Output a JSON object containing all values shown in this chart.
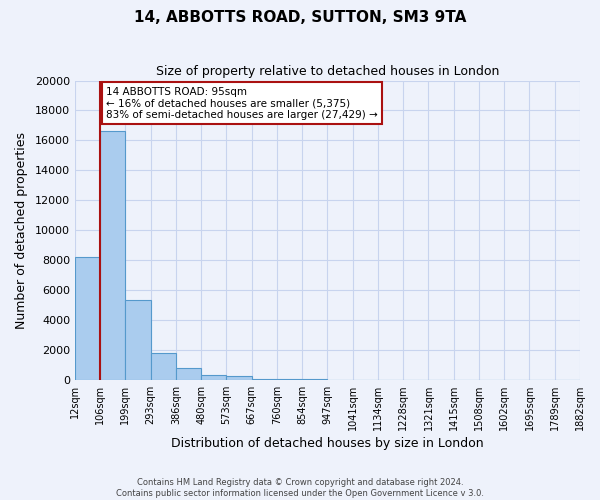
{
  "title": "14, ABBOTTS ROAD, SUTTON, SM3 9TA",
  "subtitle": "Size of property relative to detached houses in London",
  "xlabel": "Distribution of detached houses by size in London",
  "ylabel": "Number of detached properties",
  "bin_labels": [
    "12sqm",
    "106sqm",
    "199sqm",
    "293sqm",
    "386sqm",
    "480sqm",
    "573sqm",
    "667sqm",
    "760sqm",
    "854sqm",
    "947sqm",
    "1041sqm",
    "1134sqm",
    "1228sqm",
    "1321sqm",
    "1415sqm",
    "1508sqm",
    "1602sqm",
    "1695sqm",
    "1789sqm",
    "1882sqm"
  ],
  "bar_values": [
    8200,
    16600,
    5300,
    1800,
    800,
    300,
    270,
    50,
    50,
    20,
    10,
    5,
    5,
    2,
    2,
    1,
    1,
    1,
    1,
    1
  ],
  "bar_color": "#aaccee",
  "bar_edge_color": "#5599cc",
  "background_color": "#eef2fb",
  "grid_color": "#c8d4ee",
  "property_label": "14 ABBOTTS ROAD: 95sqm",
  "smaller_pct": 16,
  "smaller_count": 5375,
  "larger_pct": 83,
  "larger_count": 27429,
  "red_line_color": "#aa1111",
  "annotation_box_edge_color": "#aa1111",
  "ylim": [
    0,
    20000
  ],
  "yticks": [
    0,
    2000,
    4000,
    6000,
    8000,
    10000,
    12000,
    14000,
    16000,
    18000,
    20000
  ],
  "footer_line1": "Contains HM Land Registry data © Crown copyright and database right 2024.",
  "footer_line2": "Contains public sector information licensed under the Open Government Licence v 3.0."
}
